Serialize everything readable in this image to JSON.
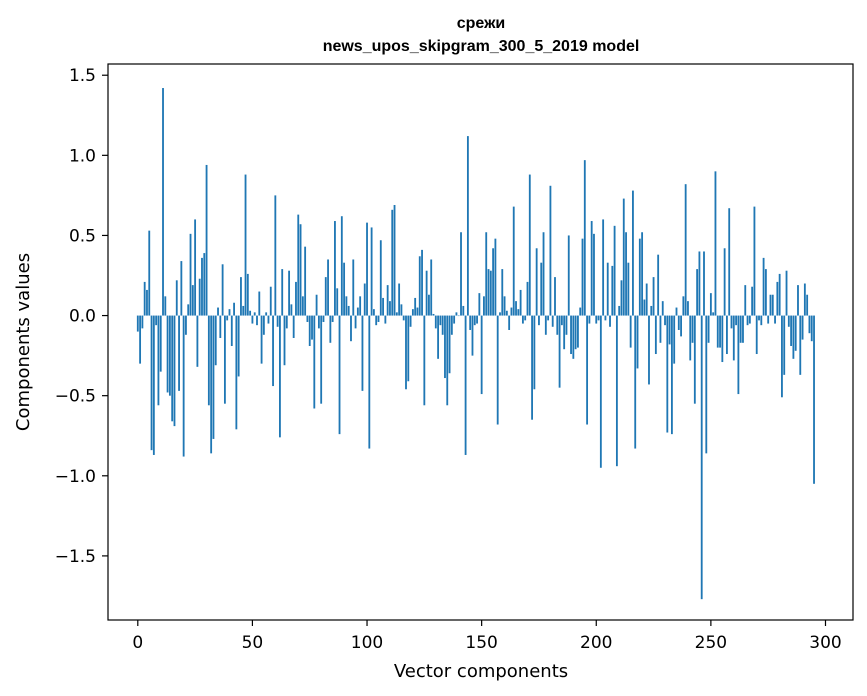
{
  "chart_data": {
    "type": "bar",
    "title": "срежи",
    "subtitle": "news_upos_skipgram_300_5_2019 model",
    "xlabel": "Vector components",
    "ylabel": "Components values",
    "xlim": [
      -13,
      312
    ],
    "ylim": [
      -1.9,
      1.57
    ],
    "xticks": [
      0,
      50,
      100,
      150,
      200,
      250,
      300
    ],
    "yticks": [
      1.5,
      1.0,
      0.5,
      0.0,
      -0.5,
      -1.0,
      -1.5
    ],
    "ytick_labels": [
      "1.5",
      "1.0",
      "0.5",
      "0.0",
      "−0.5",
      "−1.0",
      "−1.5"
    ],
    "color": "#1f77b4",
    "values": [
      -0.1,
      -0.3,
      -0.08,
      0.21,
      0.16,
      0.53,
      -0.84,
      -0.87,
      -0.06,
      -0.56,
      -0.35,
      1.42,
      0.12,
      -0.48,
      -0.5,
      -0.66,
      -0.69,
      0.22,
      -0.47,
      0.34,
      -0.88,
      -0.12,
      0.07,
      0.51,
      0.19,
      0.6,
      -0.32,
      0.23,
      0.36,
      0.39,
      0.94,
      -0.56,
      -0.86,
      -0.77,
      -0.31,
      0.05,
      -0.14,
      0.32,
      -0.55,
      -0.03,
      0.04,
      -0.19,
      0.08,
      -0.71,
      -0.38,
      0.24,
      0.06,
      0.88,
      0.26,
      0.03,
      -0.05,
      0.02,
      -0.06,
      0.15,
      -0.3,
      -0.12,
      0.02,
      -0.05,
      0.18,
      -0.44,
      0.75,
      -0.07,
      -0.76,
      0.29,
      -0.31,
      -0.08,
      0.28,
      0.07,
      -0.14,
      0.21,
      0.63,
      0.57,
      0.12,
      0.43,
      -0.04,
      -0.19,
      -0.15,
      -0.58,
      0.13,
      -0.08,
      -0.55,
      -0.04,
      0.24,
      0.35,
      -0.17,
      -0.04,
      0.59,
      0.17,
      -0.74,
      0.62,
      0.33,
      0.12,
      0.06,
      -0.16,
      0.35,
      -0.08,
      0.05,
      0.12,
      -0.47,
      0.2,
      0.58,
      -0.83,
      0.55,
      0.04,
      -0.06,
      -0.04,
      0.47,
      0.11,
      -0.05,
      0.19,
      0.09,
      0.66,
      0.69,
      0.02,
      0.2,
      0.07,
      -0.03,
      -0.46,
      -0.41,
      -0.07,
      0.04,
      0.11,
      0.05,
      0.37,
      0.41,
      -0.56,
      0.28,
      0.13,
      0.35,
      0.01,
      -0.08,
      -0.27,
      -0.06,
      -0.12,
      -0.39,
      -0.56,
      -0.36,
      -0.12,
      -0.05,
      0.02,
      0.0,
      0.52,
      0.06,
      -0.87,
      1.12,
      -0.09,
      -0.25,
      -0.06,
      -0.05,
      0.14,
      -0.49,
      0.12,
      0.52,
      0.29,
      0.28,
      0.42,
      0.48,
      -0.68,
      0.02,
      0.29,
      0.12,
      0.03,
      -0.09,
      0.05,
      0.68,
      0.09,
      0.04,
      0.16,
      -0.05,
      -0.03,
      0.21,
      0.88,
      -0.65,
      -0.46,
      0.42,
      -0.06,
      0.33,
      0.52,
      -0.12,
      -0.03,
      0.81,
      -0.07,
      0.24,
      -0.12,
      -0.45,
      -0.06,
      -0.21,
      -0.12,
      0.5,
      -0.24,
      -0.27,
      -0.21,
      -0.2,
      0.05,
      0.48,
      0.97,
      -0.68,
      -0.05,
      0.59,
      0.51,
      -0.05,
      -0.03,
      -0.95,
      0.6,
      -0.03,
      0.33,
      -0.07,
      0.31,
      0.56,
      -0.94,
      0.06,
      0.22,
      0.73,
      0.52,
      0.33,
      -0.2,
      0.78,
      -0.83,
      -0.33,
      0.48,
      0.52,
      0.1,
      0.2,
      -0.43,
      0.06,
      0.24,
      -0.24,
      0.38,
      -0.17,
      0.09,
      -0.06,
      -0.73,
      -0.18,
      -0.74,
      -0.3,
      0.05,
      -0.09,
      -0.13,
      0.12,
      0.82,
      0.09,
      -0.28,
      -0.17,
      -0.55,
      0.29,
      0.4,
      -1.77,
      0.4,
      -0.86,
      -0.17,
      0.14,
      0.02,
      0.9,
      -0.2,
      -0.2,
      -0.29,
      0.42,
      -0.24,
      0.67,
      -0.08,
      -0.28,
      -0.06,
      -0.49,
      -0.17,
      -0.17,
      0.19,
      -0.06,
      -0.05,
      0.18,
      0.68,
      -0.24,
      -0.03,
      -0.06,
      0.36,
      0.29,
      -0.05,
      0.13,
      0.13,
      -0.05,
      0.21,
      0.26,
      -0.51,
      -0.37,
      0.28,
      -0.07,
      -0.19,
      -0.27,
      -0.22,
      0.19,
      -0.37,
      -0.15,
      0.2,
      0.13,
      -0.11,
      -0.16,
      -1.05
    ]
  }
}
